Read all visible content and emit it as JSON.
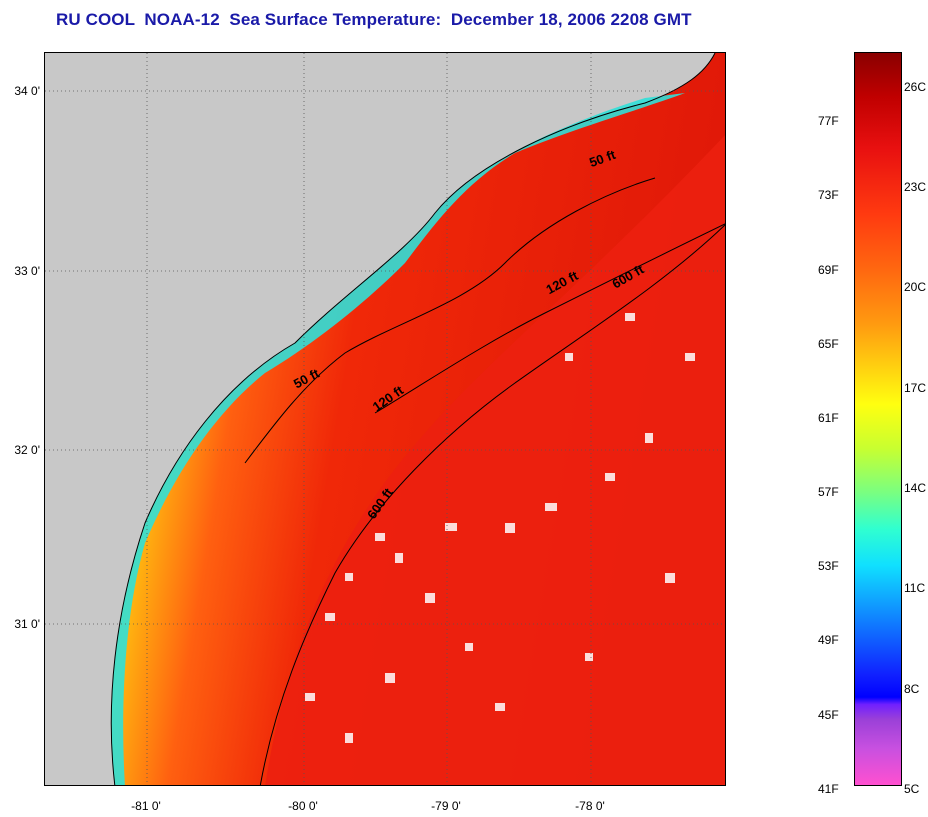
{
  "title": "RU COOL  NOAA-12  Sea Surface Temperature:  December 18, 2006 2208 GMT",
  "map": {
    "lat_labels": [
      "34 0'",
      "33 0'",
      "32 0'",
      "31 0'"
    ],
    "lon_labels": [
      "-81 0'",
      "-80 0'",
      "-79 0'",
      "-78 0'"
    ],
    "contours": [
      "50 ft",
      "120 ft",
      "600 ft",
      "50 ft",
      "120 ft",
      "600 ft"
    ]
  },
  "colorbar": {
    "fahrenheit": [
      "77F",
      "73F",
      "69F",
      "65F",
      "61F",
      "57F",
      "53F",
      "49F",
      "45F",
      "41F"
    ],
    "celsius": [
      "26C",
      "23C",
      "20C",
      "17C",
      "14C",
      "11C",
      "8C",
      "5C"
    ]
  },
  "colors": {
    "land": "#c8c8c8",
    "title": "#1a1aa8",
    "warm": "#e82008",
    "cool": "#20e8e0"
  }
}
